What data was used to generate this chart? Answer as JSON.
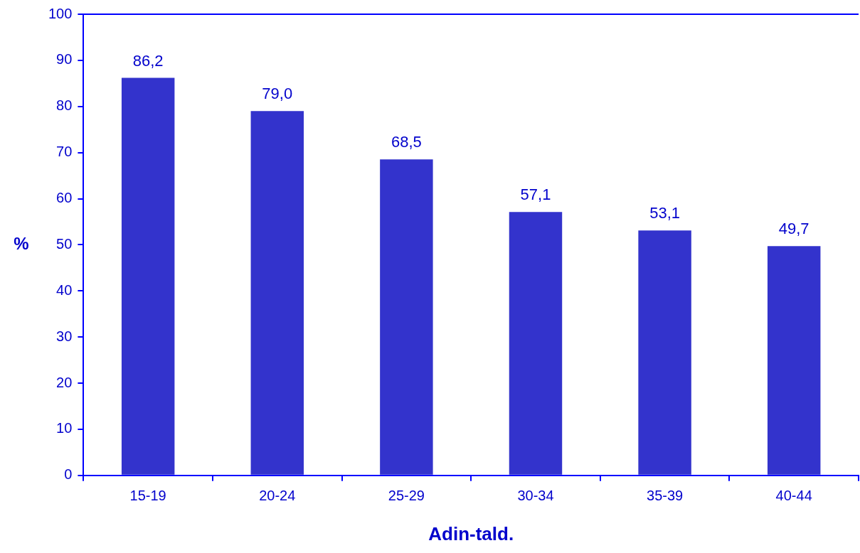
{
  "chart_data": {
    "type": "bar",
    "xlabel": "Adin-tald.",
    "ylabel": "%",
    "categories": [
      "15-19",
      "20-24",
      "25-29",
      "30-34",
      "35-39",
      "40-44"
    ],
    "values": [
      86.2,
      79.0,
      68.5,
      57.1,
      53.1,
      49.7
    ],
    "value_labels": [
      "86,2",
      "79,0",
      "68,5",
      "57,1",
      "53,1",
      "49,7"
    ],
    "color": "#3333cc",
    "ylim": [
      0,
      100
    ],
    "yticks": [
      0,
      10,
      20,
      30,
      40,
      50,
      60,
      70,
      80,
      90,
      100
    ],
    "grid": false,
    "legend": false
  }
}
